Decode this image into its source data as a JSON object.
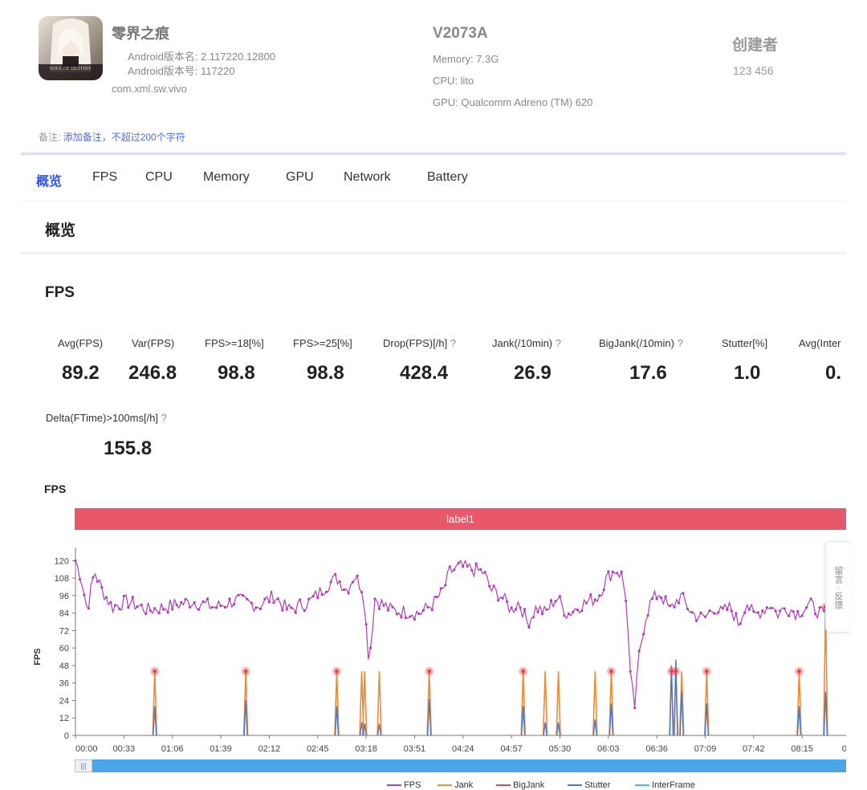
{
  "app": {
    "name": "零界之痕",
    "version_name_line": "Android版本名: 2.117220.12800",
    "version_code_line": "Android版本号: 117220",
    "package": "com.xml.sw.vivo",
    "icon_text": "SOUL OF DESTINY"
  },
  "device": {
    "model": "V2073A",
    "memory": "Memory: 7.3G",
    "cpu": "CPU: lito",
    "gpu": "GPU: Qualcomm Adreno (TM) 620"
  },
  "creator": {
    "title": "创建者",
    "id": "123 456"
  },
  "remark": {
    "label": "备注:",
    "link": "添加备注，不超过200个字符"
  },
  "tabs": [
    "概览",
    "FPS",
    "CPU",
    "Memory",
    "GPU",
    "Network",
    "Battery"
  ],
  "section_title": "概览",
  "fps_section_title": "FPS",
  "metrics": [
    {
      "label": "Avg(FPS)",
      "value": "89.2"
    },
    {
      "label": "Var(FPS)",
      "value": "246.8"
    },
    {
      "label": "FPS>=18[%]",
      "value": "98.8"
    },
    {
      "label": "FPS>=25[%]",
      "value": "98.8"
    },
    {
      "label": "Drop(FPS)[/h]",
      "value": "428.4",
      "help": "?"
    },
    {
      "label": "Jank(/10min)",
      "value": "26.9",
      "help": "?"
    },
    {
      "label": "BigJank(/10min)",
      "value": "17.6",
      "help": "?"
    },
    {
      "label": "Stutter[%]",
      "value": "1.0"
    },
    {
      "label": "Avg(Inter",
      "value": "0."
    }
  ],
  "metric_extra": {
    "label": "Delta(FTime)>100ms[/h]",
    "value": "155.8",
    "help": "?"
  },
  "side_button": "留言 · 反馈",
  "scroll_handle": "|||",
  "colors": {
    "fps": "#b23cb9",
    "jank": "#f08a34",
    "bigjank": "#e8454e",
    "stutter": "#4a76c7",
    "interframe": "#49b6e8",
    "label_bar": "#e8576a",
    "accent": "#2f54eb"
  },
  "chart_data": {
    "type": "line",
    "title": "FPS",
    "label_band": "label1",
    "ylabel": "FPS",
    "yticks": [
      0,
      12,
      24,
      36,
      48,
      60,
      72,
      84,
      96,
      108,
      120
    ],
    "ylim": [
      0,
      129
    ],
    "x_tick_labels": [
      "00:00",
      "00:33",
      "01:06",
      "01:39",
      "02:12",
      "02:45",
      "03:18",
      "03:51",
      "04:24",
      "04:57",
      "05:30",
      "06:03",
      "06:36",
      "07:09",
      "07:42",
      "08:15",
      "08:4"
    ],
    "xlim_seconds": [
      0,
      525
    ],
    "legend": [
      "FPS",
      "Jank",
      "BigJank",
      "Stutter",
      "InterFrame"
    ],
    "fps_anchors": [
      [
        0,
        120
      ],
      [
        4,
        108
      ],
      [
        8,
        86
      ],
      [
        13,
        113
      ],
      [
        18,
        100
      ],
      [
        25,
        88
      ],
      [
        35,
        92
      ],
      [
        50,
        86
      ],
      [
        65,
        89
      ],
      [
        80,
        92
      ],
      [
        95,
        88
      ],
      [
        110,
        93
      ],
      [
        125,
        89
      ],
      [
        135,
        96
      ],
      [
        145,
        86
      ],
      [
        160,
        92
      ],
      [
        170,
        102
      ],
      [
        178,
        108
      ],
      [
        185,
        100
      ],
      [
        190,
        110
      ],
      [
        196,
        100
      ],
      [
        200,
        50
      ],
      [
        204,
        94
      ],
      [
        215,
        86
      ],
      [
        225,
        85
      ],
      [
        235,
        84
      ],
      [
        243,
        90
      ],
      [
        250,
        98
      ],
      [
        255,
        112
      ],
      [
        262,
        116
      ],
      [
        270,
        114
      ],
      [
        278,
        112
      ],
      [
        283,
        100
      ],
      [
        290,
        96
      ],
      [
        297,
        86
      ],
      [
        302,
        92
      ],
      [
        308,
        77
      ],
      [
        314,
        88
      ],
      [
        320,
        84
      ],
      [
        328,
        95
      ],
      [
        335,
        83
      ],
      [
        345,
        90
      ],
      [
        356,
        95
      ],
      [
        362,
        108
      ],
      [
        368,
        114
      ],
      [
        372,
        110
      ],
      [
        375,
        95
      ],
      [
        378,
        40
      ],
      [
        381,
        20
      ],
      [
        384,
        55
      ],
      [
        388,
        80
      ],
      [
        392,
        92
      ],
      [
        398,
        98
      ],
      [
        405,
        86
      ],
      [
        412,
        96
      ],
      [
        420,
        84
      ],
      [
        428,
        80
      ],
      [
        435,
        88
      ],
      [
        440,
        84
      ],
      [
        446,
        88
      ],
      [
        452,
        76
      ],
      [
        457,
        92
      ],
      [
        462,
        82
      ],
      [
        468,
        86
      ],
      [
        474,
        90
      ],
      [
        478,
        83
      ],
      [
        484,
        88
      ],
      [
        492,
        84
      ],
      [
        500,
        90
      ],
      [
        510,
        82
      ],
      [
        516,
        80
      ],
      [
        519,
        120
      ],
      [
        522,
        84
      ]
    ],
    "fps_noise_amplitude": 5,
    "jank_events": [
      {
        "t": 54,
        "jank": 44,
        "stutter": 20,
        "big": true
      },
      {
        "t": 116,
        "jank": 44,
        "stutter": 24,
        "big": true
      },
      {
        "t": 178,
        "jank": 44,
        "stutter": 20,
        "big": true
      },
      {
        "t": 195,
        "jank": 44,
        "stutter": 9,
        "big": false
      },
      {
        "t": 197,
        "jank": 44,
        "stutter": 8,
        "big": false
      },
      {
        "t": 207,
        "jank": 44,
        "stutter": 8,
        "big": false
      },
      {
        "t": 241,
        "jank": 44,
        "stutter": 25,
        "big": true
      },
      {
        "t": 305,
        "jank": 44,
        "stutter": 20,
        "big": true
      },
      {
        "t": 320,
        "jank": 44,
        "stutter": 9,
        "big": false
      },
      {
        "t": 329,
        "jank": 44,
        "stutter": 9,
        "big": false
      },
      {
        "t": 354,
        "jank": 44,
        "stutter": 11,
        "big": false
      },
      {
        "t": 365,
        "jank": 44,
        "stutter": 22,
        "big": true
      },
      {
        "t": 406,
        "jank": 44,
        "stutter": 48,
        "big": true
      },
      {
        "t": 409,
        "jank": 44,
        "stutter": 52,
        "big": true
      },
      {
        "t": 413,
        "jank": 44,
        "stutter": 30,
        "big": false
      },
      {
        "t": 430,
        "jank": 44,
        "stutter": 22,
        "big": true
      },
      {
        "t": 493,
        "jank": 44,
        "stutter": 20,
        "big": true
      },
      {
        "t": 511,
        "jank": 88,
        "stutter": 30,
        "big": true
      }
    ]
  }
}
